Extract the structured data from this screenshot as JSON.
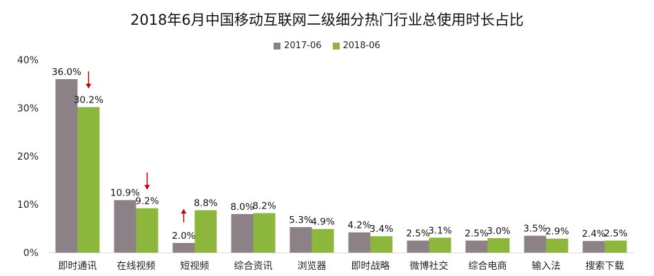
{
  "chart_data": {
    "type": "bar",
    "title": "2018年6月中国移动互联网二级细分热门行业总使用时长占比",
    "categories": [
      "即时通讯",
      "在线视频",
      "短视频",
      "综合资讯",
      "浏览器",
      "即时战略",
      "微博社交",
      "综合电商",
      "输入法",
      "搜索下载"
    ],
    "series": [
      {
        "name": "2017-06",
        "color": "#8c8187",
        "values": [
          36.0,
          10.9,
          2.0,
          8.0,
          5.3,
          4.2,
          2.5,
          2.5,
          3.5,
          2.4
        ],
        "labels": [
          "36.0%",
          "10.9%",
          "2.0%",
          "8.0%",
          "5.3%",
          "4.2%",
          "2.5%",
          "2.5%",
          "3.5%",
          "2.4%"
        ]
      },
      {
        "name": "2018-06",
        "color": "#8cb63c",
        "values": [
          30.2,
          9.2,
          8.8,
          8.2,
          4.9,
          3.4,
          3.1,
          3.0,
          2.9,
          2.5
        ],
        "labels": [
          "30.2%",
          "9.2%",
          "8.8%",
          "8.2%",
          "4.9%",
          "3.4%",
          "3.1%",
          "3.0%",
          "2.9%",
          "2.5%"
        ]
      }
    ],
    "ylim": [
      0,
      40
    ],
    "yticks": [
      "0%",
      "10%",
      "20%",
      "30%",
      "40%"
    ],
    "xlabel": "",
    "ylabel": "",
    "grid": false,
    "legend_position": "top-center",
    "annotations": [
      {
        "category": "即时通讯",
        "type": "down-arrow",
        "color": "#c00000"
      },
      {
        "category": "在线视频",
        "type": "down-arrow",
        "color": "#c00000"
      },
      {
        "category": "短视频",
        "type": "up-arrow",
        "color": "#c00000"
      }
    ]
  }
}
